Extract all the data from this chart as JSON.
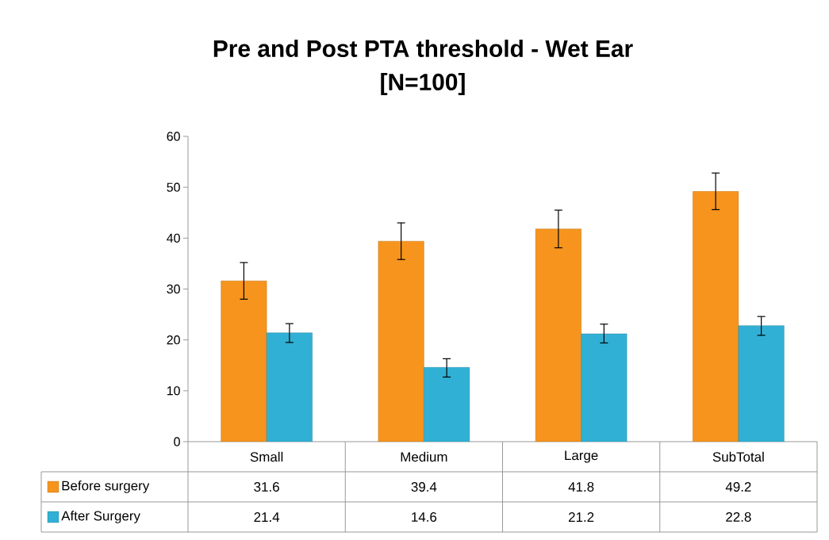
{
  "chart_data": {
    "type": "bar",
    "title": "Pre and Post PTA threshold - Wet Ear",
    "subtitle": "[N=100]",
    "categories": [
      "Small",
      "Medium",
      "Large",
      "SubTotal"
    ],
    "series": [
      {
        "name": "Before surgery",
        "color": "#f7941d",
        "values": [
          31.6,
          39.4,
          41.8,
          49.2
        ],
        "errors": [
          [
            28.0,
            35.2
          ],
          [
            35.8,
            43.0
          ],
          [
            38.1,
            45.5
          ],
          [
            45.6,
            52.8
          ]
        ]
      },
      {
        "name": "After Surgery",
        "color": "#31b0d5",
        "values": [
          21.4,
          14.6,
          21.2,
          22.8
        ],
        "errors": [
          [
            19.5,
            23.2
          ],
          [
            12.7,
            16.3
          ],
          [
            19.4,
            23.1
          ],
          [
            20.9,
            24.6
          ]
        ]
      }
    ],
    "ylim": [
      0,
      60
    ],
    "yticks": [
      0,
      10,
      20,
      30,
      40,
      50,
      60
    ],
    "grid": false,
    "legend": "bottom",
    "data_labels": true
  }
}
